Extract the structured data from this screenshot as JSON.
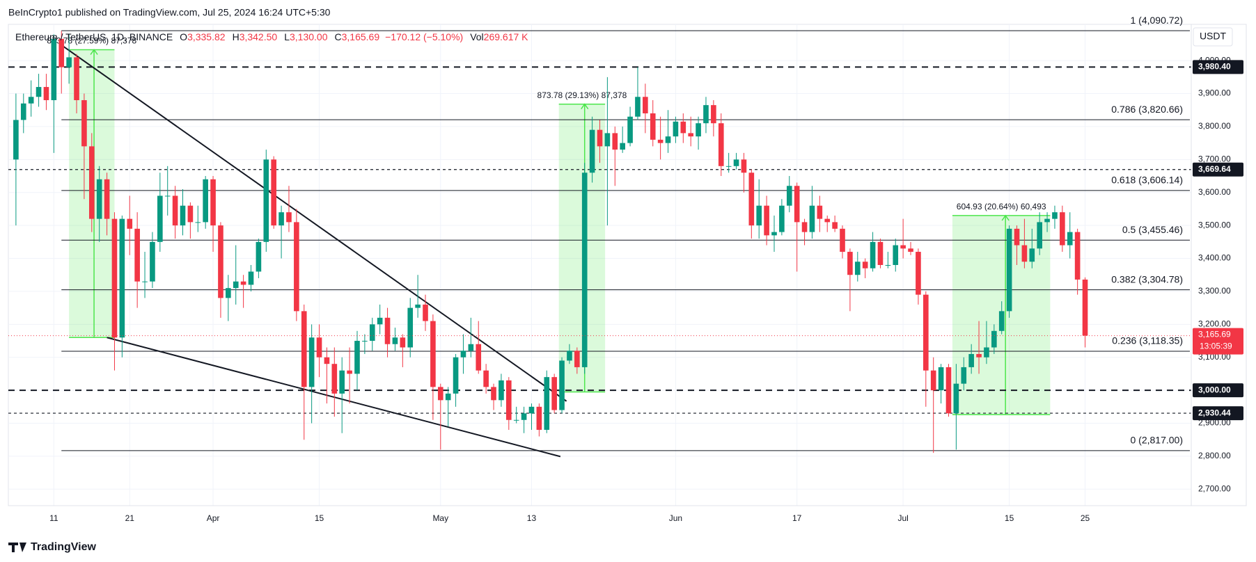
{
  "header": {
    "publisher": "BeInCrypto1 published on TradingView.com, Jul 25, 2024 16:24 UTC+5:30",
    "symbol": "Ethereum / TetherUS, 1D, BINANCE",
    "ohlc": [
      {
        "key": "O",
        "value": "3,335.82"
      },
      {
        "key": "H",
        "value": "3,342.50"
      },
      {
        "key": "L",
        "value": "3,130.00"
      },
      {
        "key": "C",
        "value": "3,165.69"
      }
    ],
    "change": "−170.12 (−5.10%)",
    "vol_key": "Vol",
    "vol": "269.617 K",
    "currency": "USDT",
    "logo": "TradingView"
  },
  "chart_data": {
    "type": "candlestick",
    "up_color": "#089981",
    "down_color": "#f23645",
    "ylim": [
      2650,
      4110
    ],
    "yticks": [
      {
        "value": 2700,
        "label": "2,700.00"
      },
      {
        "value": 2800,
        "label": "2,800.00"
      },
      {
        "value": 2900,
        "label": "2,900.00"
      },
      {
        "value": 3000,
        "label": "3,000.00"
      },
      {
        "value": 3100,
        "label": "3,100.00"
      },
      {
        "value": 3200,
        "label": "3,200.00"
      },
      {
        "value": 3300,
        "label": "3,300.00"
      },
      {
        "value": 3400,
        "label": "3,400.00"
      },
      {
        "value": 3500,
        "label": "3,500.00"
      },
      {
        "value": 3600,
        "label": "3,600.00"
      },
      {
        "value": 3700,
        "label": "3,700.00"
      },
      {
        "value": 3800,
        "label": "3,800.00"
      },
      {
        "value": 3900,
        "label": "3,900.00"
      },
      {
        "value": 4000,
        "label": "4,000.00"
      }
    ],
    "xlim": [
      -1,
      155
    ],
    "xticks": [
      {
        "value": 5,
        "label": "11"
      },
      {
        "value": 15,
        "label": "21"
      },
      {
        "value": 26,
        "label": "Apr"
      },
      {
        "value": 40,
        "label": "15"
      },
      {
        "value": 56,
        "label": "May"
      },
      {
        "value": 68,
        "label": "13"
      },
      {
        "value": 87,
        "label": "Jun"
      },
      {
        "value": 103,
        "label": "17"
      },
      {
        "value": 117,
        "label": "Jul"
      },
      {
        "value": 131,
        "label": "15"
      },
      {
        "value": 141,
        "label": "25"
      }
    ],
    "grid": true,
    "candles": [
      [
        3700,
        3900,
        3500,
        3820
      ],
      [
        3820,
        3900,
        3780,
        3870
      ],
      [
        3870,
        3940,
        3830,
        3890
      ],
      [
        3890,
        3960,
        3860,
        3920
      ],
      [
        3920,
        3960,
        3850,
        3880
      ],
      [
        3880,
        4080,
        3720,
        4066
      ],
      [
        4066,
        4090,
        3900,
        3980
      ],
      [
        3980,
        4080,
        3930,
        4010
      ],
      [
        4010,
        4020,
        3840,
        3880
      ],
      [
        3880,
        3900,
        3580,
        3740
      ],
      [
        3740,
        3780,
        3480,
        3520
      ],
      [
        3520,
        3680,
        3450,
        3640
      ],
      [
        3640,
        3660,
        3470,
        3520
      ],
      [
        3520,
        3540,
        3060,
        3160
      ],
      [
        3160,
        3530,
        3100,
        3520
      ],
      [
        3520,
        3590,
        3410,
        3490
      ],
      [
        3490,
        3540,
        3250,
        3330
      ],
      [
        3330,
        3420,
        3280,
        3330
      ],
      [
        3330,
        3480,
        3310,
        3450
      ],
      [
        3450,
        3660,
        3420,
        3590
      ],
      [
        3590,
        3680,
        3530,
        3590
      ],
      [
        3590,
        3620,
        3460,
        3500
      ],
      [
        3500,
        3610,
        3470,
        3560
      ],
      [
        3560,
        3570,
        3460,
        3510
      ],
      [
        3510,
        3560,
        3480,
        3510
      ],
      [
        3510,
        3650,
        3490,
        3640
      ],
      [
        3640,
        3650,
        3420,
        3500
      ],
      [
        3500,
        3510,
        3220,
        3280
      ],
      [
        3280,
        3350,
        3210,
        3310
      ],
      [
        3310,
        3440,
        3260,
        3330
      ],
      [
        3330,
        3350,
        3250,
        3320
      ],
      [
        3320,
        3380,
        3300,
        3360
      ],
      [
        3360,
        3460,
        3340,
        3450
      ],
      [
        3450,
        3730,
        3420,
        3700
      ],
      [
        3700,
        3710,
        3490,
        3500
      ],
      [
        3500,
        3560,
        3400,
        3540
      ],
      [
        3540,
        3620,
        3480,
        3510
      ],
      [
        3510,
        3550,
        3210,
        3240
      ],
      [
        3240,
        3260,
        2850,
        3010
      ],
      [
        3010,
        3200,
        2900,
        3160
      ],
      [
        3160,
        3200,
        3040,
        3100
      ],
      [
        3100,
        3130,
        2960,
        3080
      ],
      [
        3080,
        3130,
        2920,
        2990
      ],
      [
        2990,
        3100,
        2870,
        3060
      ],
      [
        3060,
        3130,
        2960,
        3050
      ],
      [
        3050,
        3180,
        3000,
        3150
      ],
      [
        3150,
        3170,
        3110,
        3150
      ],
      [
        3150,
        3220,
        3120,
        3200
      ],
      [
        3200,
        3260,
        3170,
        3220
      ],
      [
        3220,
        3250,
        3100,
        3140
      ],
      [
        3140,
        3190,
        3120,
        3160
      ],
      [
        3160,
        3170,
        3070,
        3130
      ],
      [
        3130,
        3280,
        3100,
        3250
      ],
      [
        3250,
        3350,
        3220,
        3260
      ],
      [
        3260,
        3290,
        3180,
        3210
      ],
      [
        3210,
        3230,
        2910,
        3010
      ],
      [
        3010,
        3020,
        2820,
        2970
      ],
      [
        2970,
        3010,
        2890,
        2990
      ],
      [
        2990,
        3110,
        2950,
        3100
      ],
      [
        3100,
        3170,
        3050,
        3120
      ],
      [
        3120,
        3220,
        3100,
        3140
      ],
      [
        3140,
        3210,
        3050,
        3060
      ],
      [
        3060,
        3080,
        2990,
        3010
      ],
      [
        3010,
        3020,
        2940,
        2970
      ],
      [
        2970,
        3050,
        2950,
        3030
      ],
      [
        3030,
        3040,
        2880,
        2910
      ],
      [
        2910,
        2950,
        2900,
        2910
      ],
      [
        2910,
        2950,
        2870,
        2930
      ],
      [
        2930,
        2960,
        2880,
        2950
      ],
      [
        2950,
        2960,
        2860,
        2880
      ],
      [
        2880,
        3060,
        2870,
        3040
      ],
      [
        3040,
        3050,
        2930,
        2940
      ],
      [
        2940,
        3100,
        2930,
        3090
      ],
      [
        3090,
        3140,
        3080,
        3120
      ],
      [
        3120,
        3130,
        3050,
        3070
      ],
      [
        3070,
        3690,
        3050,
        3660
      ],
      [
        3660,
        3830,
        3630,
        3790
      ],
      [
        3790,
        3820,
        3690,
        3740
      ],
      [
        3740,
        3950,
        3500,
        3780
      ],
      [
        3780,
        3800,
        3620,
        3730
      ],
      [
        3730,
        3800,
        3720,
        3750
      ],
      [
        3750,
        3860,
        3740,
        3830
      ],
      [
        3830,
        3980,
        3820,
        3890
      ],
      [
        3890,
        3930,
        3780,
        3840
      ],
      [
        3840,
        3880,
        3740,
        3760
      ],
      [
        3760,
        3830,
        3700,
        3750
      ],
      [
        3750,
        3850,
        3720,
        3770
      ],
      [
        3770,
        3830,
        3750,
        3815
      ],
      [
        3815,
        3840,
        3750,
        3780
      ],
      [
        3780,
        3830,
        3740,
        3770
      ],
      [
        3770,
        3830,
        3730,
        3810
      ],
      [
        3810,
        3890,
        3780,
        3865
      ],
      [
        3865,
        3880,
        3770,
        3810
      ],
      [
        3810,
        3840,
        3650,
        3680
      ],
      [
        3680,
        3720,
        3660,
        3680
      ],
      [
        3680,
        3720,
        3670,
        3700
      ],
      [
        3700,
        3720,
        3600,
        3660
      ],
      [
        3660,
        3670,
        3460,
        3500
      ],
      [
        3500,
        3640,
        3460,
        3560
      ],
      [
        3560,
        3590,
        3440,
        3470
      ],
      [
        3470,
        3530,
        3420,
        3480
      ],
      [
        3480,
        3580,
        3470,
        3560
      ],
      [
        3560,
        3650,
        3540,
        3620
      ],
      [
        3620,
        3630,
        3360,
        3510
      ],
      [
        3510,
        3520,
        3440,
        3480
      ],
      [
        3480,
        3620,
        3460,
        3560
      ],
      [
        3560,
        3590,
        3480,
        3520
      ],
      [
        3520,
        3530,
        3480,
        3510
      ],
      [
        3510,
        3530,
        3480,
        3490
      ],
      [
        3490,
        3500,
        3400,
        3420
      ],
      [
        3420,
        3430,
        3240,
        3350
      ],
      [
        3350,
        3420,
        3330,
        3390
      ],
      [
        3390,
        3400,
        3340,
        3370
      ],
      [
        3370,
        3480,
        3360,
        3450
      ],
      [
        3450,
        3460,
        3370,
        3380
      ],
      [
        3380,
        3420,
        3370,
        3380
      ],
      [
        3380,
        3460,
        3360,
        3440
      ],
      [
        3440,
        3520,
        3400,
        3430
      ],
      [
        3430,
        3450,
        3410,
        3420
      ],
      [
        3420,
        3430,
        3260,
        3290
      ],
      [
        3290,
        3300,
        2950,
        3060
      ],
      [
        3060,
        3100,
        2810,
        3000
      ],
      [
        3000,
        3080,
        2960,
        3070
      ],
      [
        3070,
        3080,
        2920,
        2930
      ],
      [
        2930,
        3080,
        2820,
        3020
      ],
      [
        3020,
        3100,
        3000,
        3070
      ],
      [
        3070,
        3140,
        3050,
        3110
      ],
      [
        3110,
        3210,
        3050,
        3100
      ],
      [
        3100,
        3210,
        3080,
        3130
      ],
      [
        3130,
        3200,
        3110,
        3180
      ],
      [
        3180,
        3270,
        3170,
        3240
      ],
      [
        3240,
        3500,
        3220,
        3490
      ],
      [
        3490,
        3500,
        3380,
        3440
      ],
      [
        3440,
        3520,
        3370,
        3390
      ],
      [
        3390,
        3490,
        3370,
        3430
      ],
      [
        3430,
        3540,
        3410,
        3510
      ],
      [
        3510,
        3540,
        3480,
        3520
      ],
      [
        3520,
        3560,
        3490,
        3540
      ],
      [
        3540,
        3560,
        3420,
        3440
      ],
      [
        3440,
        3540,
        3400,
        3480
      ],
      [
        3480,
        3490,
        3290,
        3335.82
      ],
      [
        3335.82,
        3342.5,
        3130,
        3165.69
      ]
    ],
    "fib_levels": [
      {
        "value": 4090.72,
        "label": "1 (4,090.72)"
      },
      {
        "value": 3820.66,
        "label": "0.786 (3,820.66)"
      },
      {
        "value": 3606.14,
        "label": "0.618 (3,606.14)"
      },
      {
        "value": 3455.46,
        "label": "0.5 (3,455.46)"
      },
      {
        "value": 3304.78,
        "label": "0.382 (3,304.78)"
      },
      {
        "value": 3118.35,
        "label": "0.236 (3,118.35)"
      },
      {
        "value": 2817,
        "label": "0 (2,817.00)"
      }
    ],
    "fib_start": 6,
    "levels": [
      {
        "value": 3980.4,
        "label": "3,980.40"
      },
      {
        "value": 3669.64,
        "label": "3,669.64"
      },
      {
        "value": 3000,
        "label": "3,000.00"
      },
      {
        "value": 2930.44,
        "label": "2,930.44"
      }
    ],
    "current_price": {
      "value": 3165.69,
      "label": "3,165.69"
    },
    "countdown": "13:05:39",
    "measures": [
      {
        "x": [
          7,
          13
        ],
        "range": [
          3160,
          4033
        ],
        "arrow_x": 10.3,
        "label": "873.78 (27.59%) 87,378"
      },
      {
        "x": [
          71.6,
          77.7
        ],
        "range": [
          2995,
          3868
        ],
        "arrow_x": 75,
        "label": "873.78 (29.13%) 87,378"
      },
      {
        "x": [
          123.5,
          136.4
        ],
        "range": [
          2926,
          3530
        ],
        "arrow_x": 130.5,
        "label": "604.93 (20.64%) 60,493"
      }
    ],
    "trendlines": [
      {
        "x": [
          5.7,
          72.6
        ],
        "y": [
          4052,
          2967
        ]
      },
      {
        "x": [
          12,
          71.8
        ],
        "y": [
          3160,
          2799
        ]
      }
    ]
  }
}
